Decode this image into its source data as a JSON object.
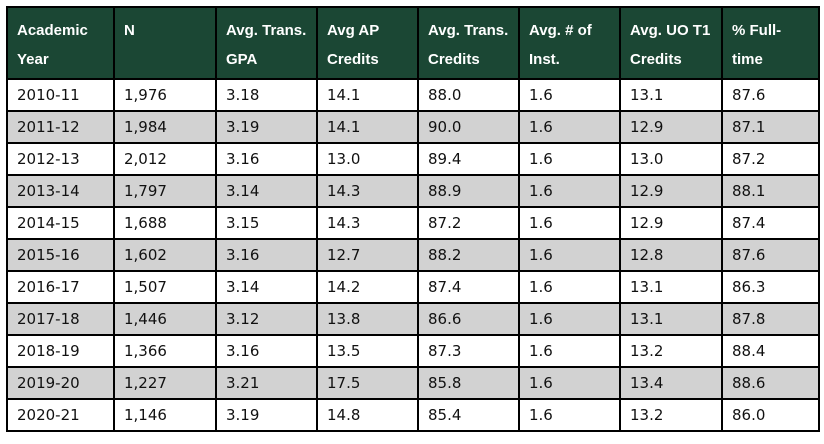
{
  "chart_data": {
    "type": "table",
    "title": "Academic Year transfer statistics table",
    "columns": [
      "Academic Year",
      "N",
      "Avg. Trans. GPA",
      "Avg AP Credits",
      "Avg. Trans. Credits",
      "Avg. # of Inst.",
      "Avg. UO T1 Credits",
      "% Full-time"
    ],
    "header_lines": [
      [
        "Academic",
        "Year"
      ],
      [
        "N"
      ],
      [
        "Avg. Trans.",
        "GPA"
      ],
      [
        "Avg AP",
        "Credits"
      ],
      [
        "Avg. Trans.",
        "Credits"
      ],
      [
        "Avg. # of",
        "Inst."
      ],
      [
        "Avg. UO T1",
        "Credits"
      ],
      [
        "% Full-",
        "time"
      ]
    ],
    "rows": [
      [
        "2010-11",
        "1,976",
        "3.18",
        "14.1",
        "88.0",
        "1.6",
        "13.1",
        "87.6"
      ],
      [
        "2011-12",
        "1,984",
        "3.19",
        "14.1",
        "90.0",
        "1.6",
        "12.9",
        "87.1"
      ],
      [
        "2012-13",
        "2,012",
        "3.16",
        "13.0",
        "89.4",
        "1.6",
        "13.0",
        "87.2"
      ],
      [
        "2013-14",
        "1,797",
        "3.14",
        "14.3",
        "88.9",
        "1.6",
        "12.9",
        "88.1"
      ],
      [
        "2014-15",
        "1,688",
        "3.15",
        "14.3",
        "87.2",
        "1.6",
        "12.9",
        "87.4"
      ],
      [
        "2015-16",
        "1,602",
        "3.16",
        "12.7",
        "88.2",
        "1.6",
        "12.8",
        "87.6"
      ],
      [
        "2016-17",
        "1,507",
        "3.14",
        "14.2",
        "87.4",
        "1.6",
        "13.1",
        "86.3"
      ],
      [
        "2017-18",
        "1,446",
        "3.12",
        "13.8",
        "86.6",
        "1.6",
        "13.1",
        "87.8"
      ],
      [
        "2018-19",
        "1,366",
        "3.16",
        "13.5",
        "87.3",
        "1.6",
        "13.2",
        "88.4"
      ],
      [
        "2019-20",
        "1,227",
        "3.21",
        "17.5",
        "85.8",
        "1.6",
        "13.4",
        "88.6"
      ],
      [
        "2020-21",
        "1,146",
        "3.19",
        "14.8",
        "85.4",
        "1.6",
        "13.2",
        "86.0"
      ]
    ]
  },
  "colors": {
    "header_bg": "#1b4734",
    "header_text": "#ffffff",
    "row_bg": "#ffffff",
    "row_alt_bg": "#d2d2d2",
    "border": "#000000"
  }
}
